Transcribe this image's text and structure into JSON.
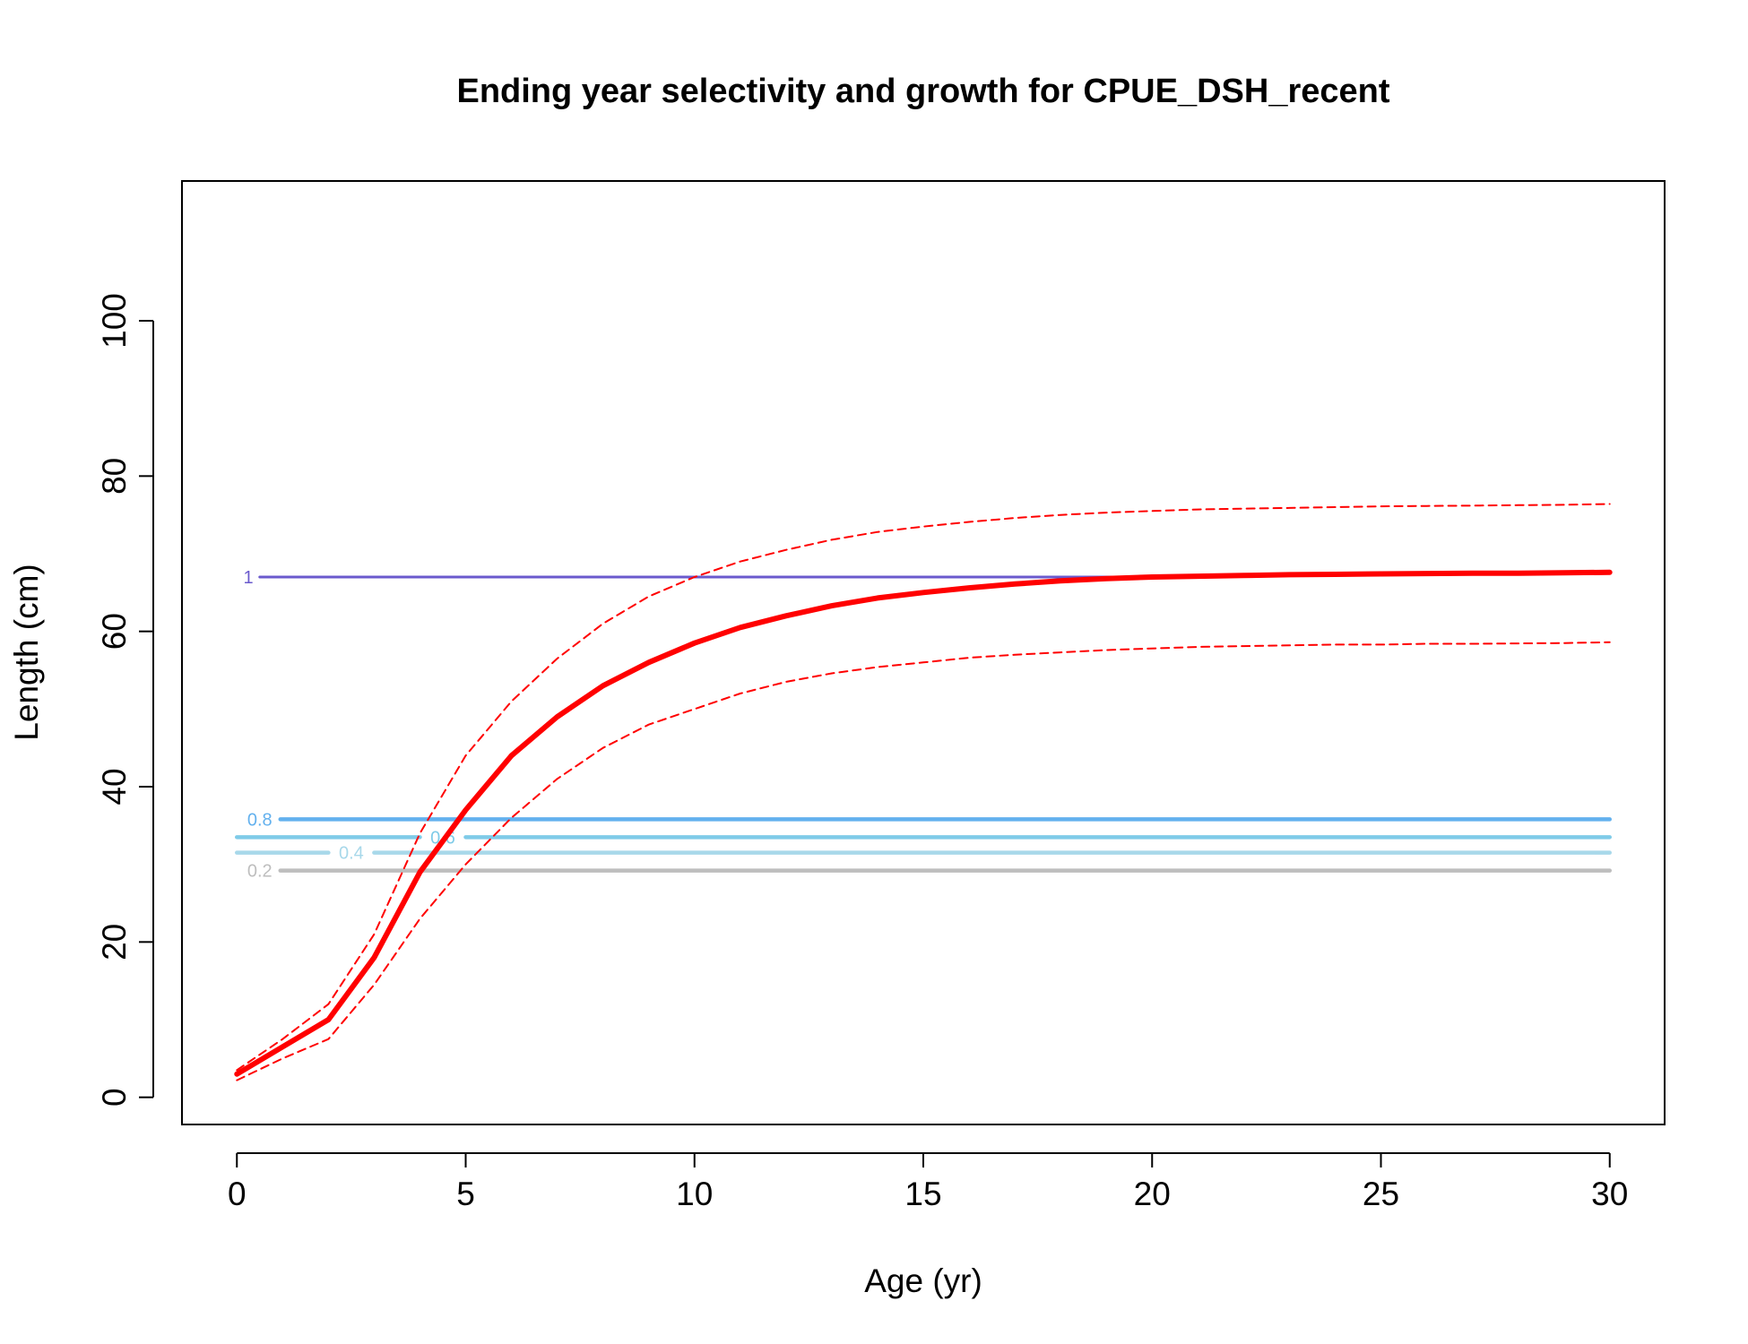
{
  "chart_data": {
    "type": "line",
    "title": "Ending year selectivity and growth for CPUE_DSH_recent",
    "xlabel": "Age (yr)",
    "ylabel": "Length (cm)",
    "xlim": [
      -1.2,
      31.2
    ],
    "ylim": [
      -3.5,
      118
    ],
    "x_ticks": [
      0,
      5,
      10,
      15,
      20,
      25,
      30
    ],
    "y_ticks": [
      0,
      20,
      40,
      60,
      80,
      100
    ],
    "grid": false,
    "legend": "none",
    "series": [
      {
        "role": "mean-length",
        "color": "#ff0000",
        "style": "solid",
        "x": [
          0,
          1,
          2,
          3,
          4,
          5,
          6,
          7,
          8,
          9,
          10,
          11,
          12,
          13,
          14,
          15,
          16,
          17,
          18,
          19,
          20,
          21,
          22,
          23,
          24,
          25,
          26,
          27,
          28,
          29,
          30
        ],
        "y": [
          3,
          6.5,
          10,
          18,
          29,
          37,
          44,
          49,
          53,
          56,
          58.5,
          60.5,
          62,
          63.3,
          64.3,
          65,
          65.6,
          66.1,
          66.5,
          66.8,
          67,
          67.1,
          67.2,
          67.3,
          67.35,
          67.4,
          67.45,
          67.5,
          67.5,
          67.55,
          67.6
        ]
      },
      {
        "role": "upper-interval",
        "color": "#ff0000",
        "style": "dashed",
        "x": [
          0,
          1,
          2,
          3,
          4,
          5,
          6,
          7,
          8,
          9,
          10,
          11,
          12,
          13,
          14,
          15,
          16,
          17,
          18,
          19,
          20,
          21,
          22,
          23,
          24,
          25,
          26,
          27,
          28,
          29,
          30
        ],
        "y": [
          3.5,
          7.5,
          12,
          21,
          34,
          44,
          51,
          56.5,
          61,
          64.5,
          67,
          69,
          70.5,
          71.8,
          72.8,
          73.5,
          74.1,
          74.6,
          75,
          75.3,
          75.5,
          75.7,
          75.8,
          75.9,
          76,
          76.1,
          76.15,
          76.2,
          76.25,
          76.3,
          76.4
        ]
      },
      {
        "role": "lower-interval",
        "color": "#ff0000",
        "style": "dashed",
        "x": [
          0,
          1,
          2,
          3,
          4,
          5,
          6,
          7,
          8,
          9,
          10,
          11,
          12,
          13,
          14,
          15,
          16,
          17,
          18,
          19,
          20,
          21,
          22,
          23,
          24,
          25,
          26,
          27,
          28,
          29,
          30
        ],
        "y": [
          2.2,
          5,
          7.5,
          14.5,
          23,
          30,
          36,
          41,
          45,
          48,
          50,
          52,
          53.5,
          54.6,
          55.4,
          56,
          56.6,
          57,
          57.3,
          57.6,
          57.8,
          58,
          58.1,
          58.2,
          58.3,
          58.3,
          58.4,
          58.4,
          58.45,
          58.5,
          58.6
        ]
      }
    ],
    "selectivity_contours": [
      {
        "level": "1",
        "y": 67,
        "color": "#6a5acd",
        "width": 3,
        "label_x": 0.25,
        "segments": [
          [
            0.5,
            19.5
          ]
        ]
      },
      {
        "level": "0.8",
        "y": 35.8,
        "color": "#63b1ee",
        "width": 4.5,
        "label_x": 0.5,
        "segments": [
          [
            0.95,
            30
          ]
        ]
      },
      {
        "level": "0.6",
        "y": 33.5,
        "color": "#7fcbe8",
        "width": 4.5,
        "label_x": 4.5,
        "segments": [
          [
            0,
            4.0
          ],
          [
            5.0,
            30
          ]
        ]
      },
      {
        "level": "0.4",
        "y": 31.5,
        "color": "#a8d8ea",
        "width": 4.5,
        "label_x": 2.5,
        "segments": [
          [
            0,
            2.0
          ],
          [
            3.0,
            30
          ]
        ]
      },
      {
        "level": "0.2",
        "y": 29.2,
        "color": "#bebebe",
        "width": 4.5,
        "label_x": 0.5,
        "segments": [
          [
            0.95,
            30
          ]
        ]
      }
    ]
  }
}
